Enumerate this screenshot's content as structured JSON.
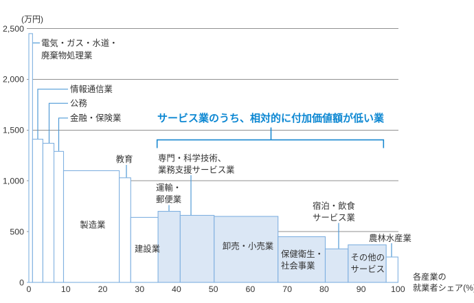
{
  "chart_data": {
    "type": "bar",
    "variant": "variable-width-bars (industry share on x, value per worker on y)",
    "y_unit_label": "(万円)",
    "x_axis_label_lines": [
      "各産業の",
      "就業者シェア(%)"
    ],
    "annotation": "サービス業のうち、相対的に付加価値額が低い業",
    "ylim": [
      0,
      2500
    ],
    "ytick_values": [
      0,
      500,
      1000,
      1500,
      2000,
      2500
    ],
    "ytick_labels": [
      "0",
      "500",
      "1,000",
      "1,500",
      "2,000",
      "2,500"
    ],
    "xtick_values": [
      0,
      10,
      20,
      30,
      40,
      50,
      60,
      70,
      80,
      90,
      100
    ],
    "xtick_labels": [
      "0",
      "10",
      "20",
      "30",
      "40",
      "50",
      "60",
      "70",
      "80",
      "90",
      "100"
    ],
    "value_unit": "万円",
    "share_unit": "%",
    "industries": [
      {
        "label": "電気・ガス・水道・廃棄物処理業",
        "label_lines": [
          "電気・ガス・水道・",
          "廃棄物処理業"
        ],
        "share_pct": 1.0,
        "value": 2450,
        "highlighted": false
      },
      {
        "label": "情報通信業",
        "label_lines": [
          "情報通信業"
        ],
        "share_pct": 2.8,
        "value": 1410,
        "highlighted": false
      },
      {
        "label": "公務",
        "label_lines": [
          "公務"
        ],
        "share_pct": 3.0,
        "value": 1370,
        "highlighted": false
      },
      {
        "label": "金融・保険業",
        "label_lines": [
          "金融・保険業"
        ],
        "share_pct": 2.6,
        "value": 1290,
        "highlighted": false
      },
      {
        "label": "製造業",
        "label_lines": [
          "製造業"
        ],
        "share_pct": 15.1,
        "value": 1100,
        "highlighted": false
      },
      {
        "label": "教育",
        "label_lines": [
          "教育"
        ],
        "share_pct": 3.1,
        "value": 1030,
        "highlighted": false
      },
      {
        "label": "建設業",
        "label_lines": [
          "建設業"
        ],
        "share_pct": 7.4,
        "value": 640,
        "highlighted": false
      },
      {
        "label": "運輸・郵便業",
        "label_lines": [
          "運輸・",
          "郵便業"
        ],
        "share_pct": 6.0,
        "value": 700,
        "highlighted": true
      },
      {
        "label": "専門・科学技術、業務支援サービス業",
        "label_lines": [
          "専門・科学技術、",
          "業務支援サービス業"
        ],
        "share_pct": 9.2,
        "value": 660,
        "highlighted": true
      },
      {
        "label": "卸売・小売業",
        "label_lines": [
          "卸売・小売業"
        ],
        "share_pct": 17.3,
        "value": 650,
        "highlighted": true
      },
      {
        "label": "保健衛生・社会事業",
        "label_lines": [
          "保健衛生・",
          "社会事業"
        ],
        "share_pct": 12.8,
        "value": 450,
        "highlighted": true
      },
      {
        "label": "宿泊・飲食サービス業",
        "label_lines": [
          "宿泊・飲食",
          "サービス業"
        ],
        "share_pct": 6.2,
        "value": 330,
        "highlighted": true
      },
      {
        "label": "その他のサービス",
        "label_lines": [
          "その他の",
          "サービス"
        ],
        "share_pct": 10.3,
        "value": 370,
        "highlighted": true
      },
      {
        "label": "農林水産業",
        "label_lines": [
          "農林水産業"
        ],
        "share_pct": 3.2,
        "value": 250,
        "highlighted": false
      }
    ],
    "colors": {
      "background": "#ffffff",
      "highlight_fill": "#dbe7f5",
      "plain_fill": "#ffffff",
      "bar_stroke": "#7fb0e0",
      "axis_blue": "#7fb0e0",
      "leader_blue": "#4f9ad6",
      "bracket_blue": "#1a88d0",
      "annotation_blue": "#0c87d2",
      "grid_gray": "#8f8f8f",
      "text": "#333333"
    },
    "legend": "薄い青色の塗りつぶし＝サービス業のうち、相対的に付加価値額が低い業",
    "grid": true
  }
}
